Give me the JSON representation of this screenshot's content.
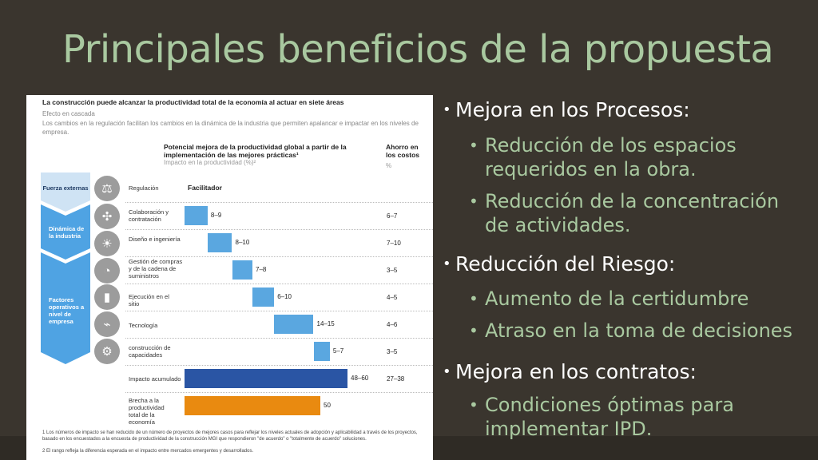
{
  "slide": {
    "title": "Principales beneficios de la propuesta"
  },
  "figure": {
    "heading": "La construcción puede alcanzar la productividad total de la economía al actuar en siete áreas",
    "subheading": "Efecto en cascada",
    "description": "Los cambios en la regulación facilitan los cambios en la dinámica de la industria que permiten apalancar e impactar en los niveles de empresa.",
    "col_improvement_title": "Potencial mejora de la productividad global a partir de la implementación de las mejores prácticas¹",
    "col_improvement_sub": "Impacto en la productividad (%)²",
    "col_savings_title": "Ahorro en los costos",
    "col_savings_sub": "%",
    "facilitator_label": "Facilitador",
    "chevrons": [
      {
        "label": "Fuerza externas",
        "color": "#cfe3f4",
        "text_color": "#1f3b63"
      },
      {
        "label": "Dinámica de la industria",
        "color": "#4fa3e3",
        "text_color": "#ffffff"
      },
      {
        "label": "Factores operativos a nivel de empresa",
        "color": "#4fa3e3",
        "text_color": "#ffffff"
      }
    ],
    "icons": [
      "stamp-icon",
      "network-icon",
      "lightbulb-icon",
      "gauge-icon",
      "bar-chart-icon",
      "circuit-icon",
      "head-gear-icon"
    ],
    "footnotes": [
      "1  Los números de impacto se han reducido de un número de proyectos de mejores casos para reflejar los niveles actuales de adopción y aplicabilidad a través de los proyectos, basado en los encuestados a la encuesta de productividad de la construcción MGI que respondieron \"de acuerdo\" o \"totalmente de acuerdo\" soluciones.",
      "2  El rango refleja la diferencia esperada en el impacto entre mercados emergentes y desarrollados."
    ]
  },
  "chart_data": {
    "type": "bar",
    "subtype": "waterfall",
    "ylabel": "Impacto en la productividad (%)",
    "categories": [
      "Regulación",
      "Colaboración y contratación",
      "Diseño e ingeniería",
      "Gestión de compras y de la cadena de suministros",
      "Ejecución en el sitio",
      "Tecnología",
      "construcción de capacidades",
      "Impacto acumulado",
      "Brecha a la productividad total de la economía"
    ],
    "impact_labels": [
      "",
      "8–9",
      "8–10",
      "7–8",
      "6–10",
      "14–15",
      "5–7",
      "48–60",
      "50"
    ],
    "impact_low": [
      null,
      8,
      8,
      7,
      6,
      14,
      5,
      48,
      50
    ],
    "impact_high": [
      null,
      9,
      10,
      8,
      10,
      15,
      7,
      60,
      50
    ],
    "cost_savings": [
      "",
      "6–7",
      "7–10",
      "3–5",
      "4–5",
      "4–6",
      "3–5",
      "27–38",
      ""
    ],
    "colors": {
      "step": "#5aa7e0",
      "total": "#2a55a4",
      "gap": "#e98a10"
    }
  },
  "bullets": [
    {
      "text": "Mejora en los Procesos:",
      "children": [
        "Reducción de los espacios requeridos en la obra.",
        "Reducción de la concentración de actividades."
      ]
    },
    {
      "text": "Reducción del Riesgo:",
      "children": [
        "Aumento de la certidumbre",
        "Atraso en la toma de decisiones"
      ]
    },
    {
      "text": "Mejora en los contratos:",
      "children": [
        "Condiciones óptimas para implementar IPD."
      ]
    }
  ],
  "colors": {
    "background": "#3a352e",
    "accent": "#a9c9a0"
  }
}
